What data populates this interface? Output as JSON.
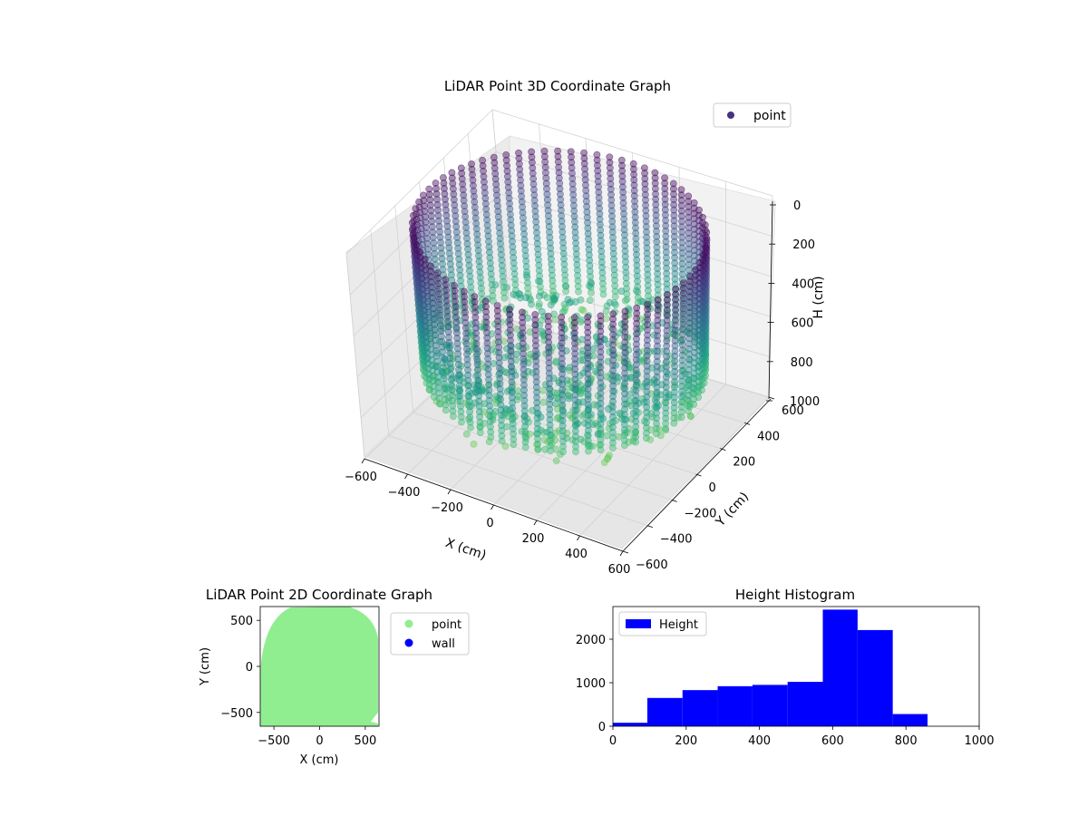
{
  "chart_data": [
    {
      "type": "scatter",
      "projection": "3d",
      "title": "LiDAR Point 3D Coordinate Graph",
      "xlabel": "X (cm)",
      "ylabel": "Y (cm)",
      "zlabel": "H (cm)",
      "xlim": [
        -600,
        600
      ],
      "ylim": [
        -600,
        600
      ],
      "zlim": [
        0,
        1000
      ],
      "z_inverted": true,
      "x_ticks": [
        -600,
        -400,
        -200,
        0,
        200,
        400,
        600
      ],
      "y_ticks": [
        -600,
        -400,
        -200,
        0,
        200,
        400,
        600
      ],
      "z_ticks": [
        0,
        200,
        400,
        600,
        800,
        1000
      ],
      "colormap": "viridis",
      "legend": {
        "position": "top-right",
        "entries": [
          "point"
        ]
      },
      "series": [
        {
          "name": "point",
          "color": "#46327e",
          "description": "cylindrical room scan, radius ~600, heights 0-1000"
        }
      ],
      "grid": true
    },
    {
      "type": "scatter",
      "title": "LiDAR Point 2D Coordinate Graph",
      "xlabel": "X (cm)",
      "ylabel": "Y (cm)",
      "xlim": [
        -650,
        650
      ],
      "ylim": [
        -650,
        650
      ],
      "x_ticks": [
        -500,
        0,
        500
      ],
      "y_ticks": [
        -500,
        0,
        500
      ],
      "legend": {
        "position": "outside-right",
        "entries": [
          "point",
          "wall"
        ]
      },
      "series": [
        {
          "name": "point",
          "color": "#90ee90"
        },
        {
          "name": "wall",
          "color": "#0000ff"
        }
      ]
    },
    {
      "type": "bar",
      "subtype": "histogram",
      "title": "Height Histogram",
      "xlabel": "",
      "ylabel": "",
      "xlim": [
        0,
        1000
      ],
      "ylim": [
        0,
        2750
      ],
      "x_ticks": [
        0,
        200,
        400,
        600,
        800,
        1000
      ],
      "y_ticks": [
        0,
        1000,
        2000
      ],
      "bin_edges": [
        0,
        94,
        190,
        286,
        381,
        477,
        573,
        668,
        764,
        859
      ],
      "values": [
        80,
        650,
        830,
        920,
        950,
        1020,
        2680,
        2210,
        280
      ],
      "legend": {
        "position": "top-left",
        "entries": [
          "Height"
        ]
      },
      "series": [
        {
          "name": "Height",
          "color": "#0000ff"
        }
      ]
    }
  ]
}
